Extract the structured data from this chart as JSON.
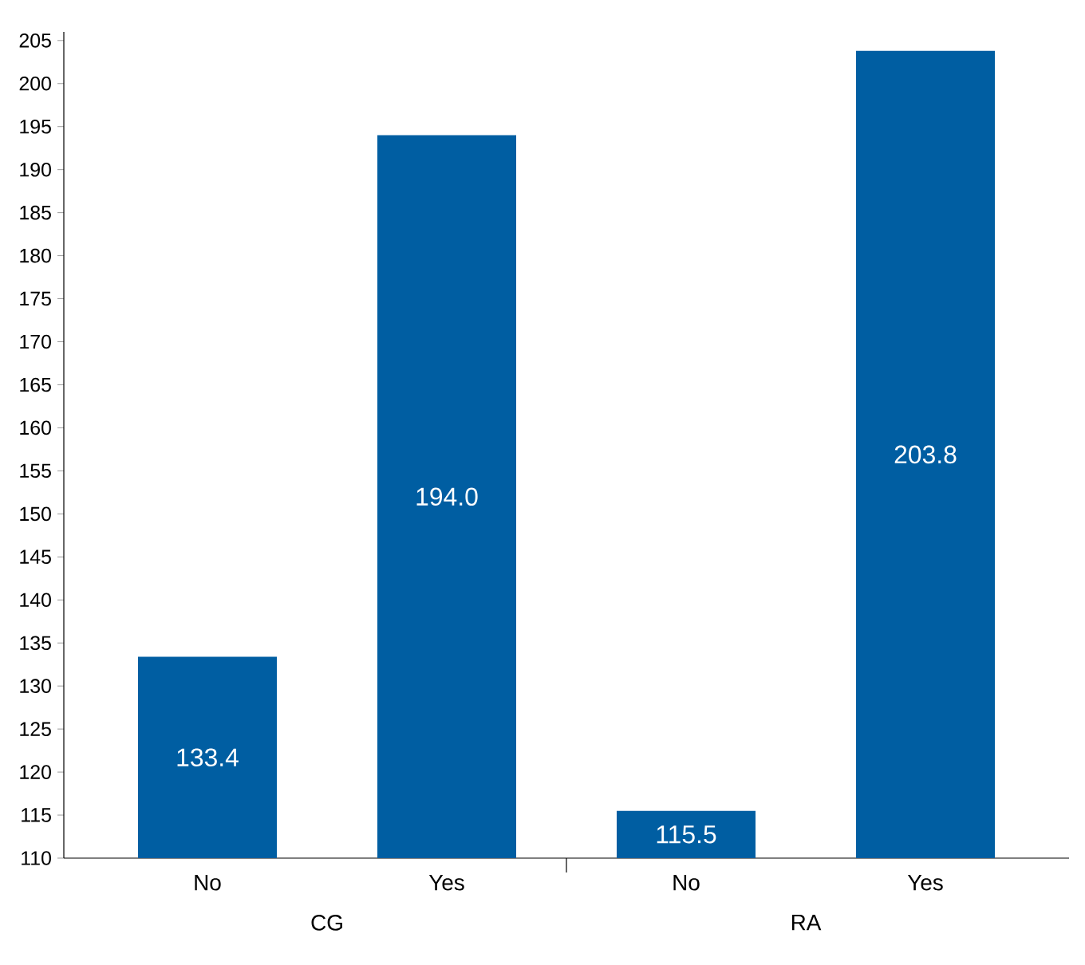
{
  "chart_data": {
    "type": "bar",
    "categories": [
      "No",
      "Yes",
      "No",
      "Yes"
    ],
    "values": [
      133.4,
      194.0,
      115.5,
      203.8
    ],
    "value_labels": [
      "133.4",
      "194.0",
      "115.5",
      "203.8"
    ],
    "color": "#005ea2",
    "ylim": [
      110,
      206
    ],
    "yticks": [
      110,
      115,
      120,
      125,
      130,
      135,
      140,
      145,
      150,
      155,
      160,
      165,
      170,
      175,
      180,
      185,
      190,
      195,
      200,
      205
    ],
    "annotations": [
      "CG",
      "RA"
    ]
  }
}
